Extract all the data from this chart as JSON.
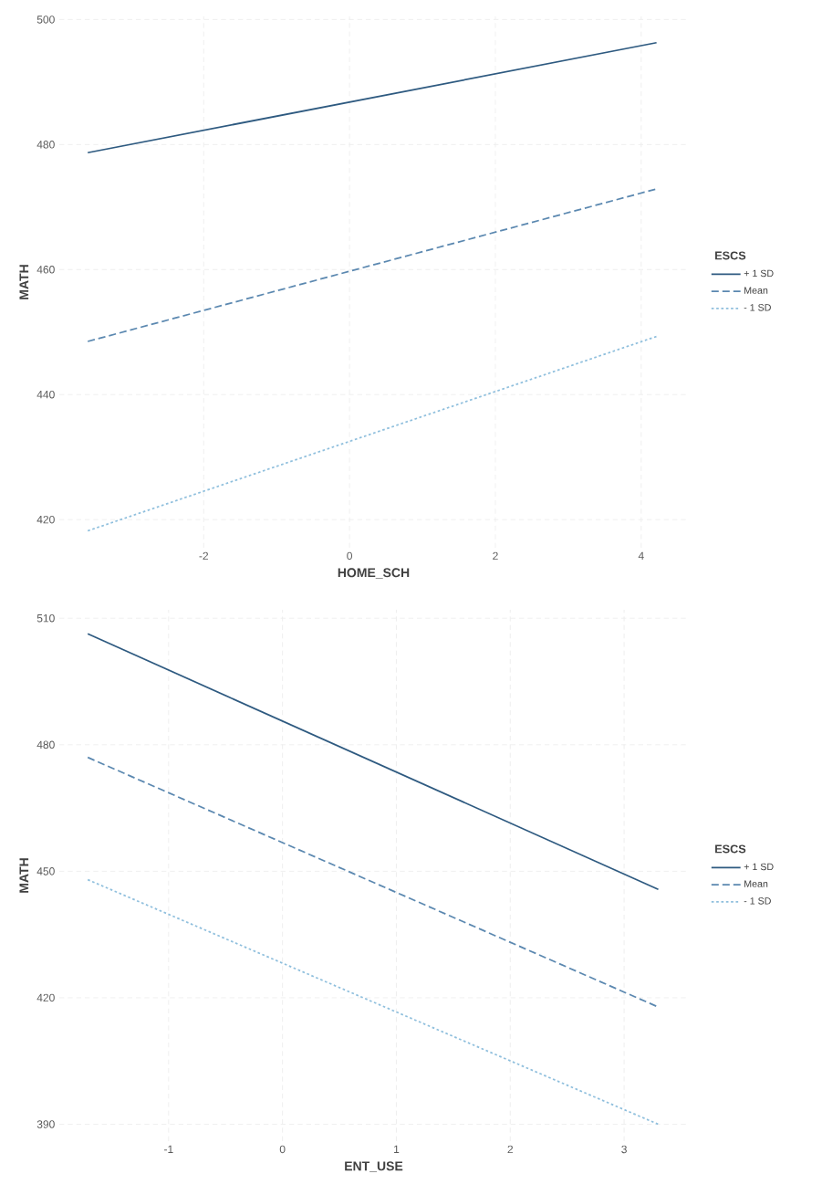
{
  "chart_data": [
    {
      "type": "line",
      "xlabel": "HOME_SCH",
      "ylabel": "MATH",
      "legend_title": "ESCS",
      "legend": "right",
      "grid": true,
      "xlim": [
        -3.98,
        4.64
      ],
      "ylim": [
        415.5,
        500.5
      ],
      "xticks": [
        -2,
        0,
        2,
        4
      ],
      "yticks": [
        420,
        440,
        460,
        480,
        500
      ],
      "series": [
        {
          "name": "+ 1 SD",
          "color": "#2e5a80",
          "line_style": "solid",
          "x": [
            -3.59,
            4.21
          ],
          "values": [
            478.7,
            496.3
          ]
        },
        {
          "name": "Mean",
          "color": "#5b88b0",
          "line_style": "dashed",
          "x": [
            -3.59,
            4.21
          ],
          "values": [
            448.5,
            472.9
          ]
        },
        {
          "name": "- 1 SD",
          "color": "#8fbfdd",
          "line_style": "dotted",
          "x": [
            -3.59,
            4.21
          ],
          "values": [
            418.2,
            449.3
          ]
        }
      ]
    },
    {
      "type": "line",
      "xlabel": "ENT_USE",
      "ylabel": "MATH",
      "legend_title": "ESCS",
      "legend": "right",
      "grid": true,
      "xlim": [
        -1.96,
        3.56
      ],
      "ylim": [
        386,
        512
      ],
      "xticks": [
        -1,
        0,
        1,
        2,
        3
      ],
      "yticks": [
        390,
        420,
        450,
        480,
        510
      ],
      "series": [
        {
          "name": "+ 1 SD",
          "color": "#2e5a80",
          "line_style": "solid",
          "x": [
            -1.71,
            3.3
          ],
          "values": [
            506.3,
            445.7
          ]
        },
        {
          "name": "Mean",
          "color": "#5b88b0",
          "line_style": "dashed",
          "x": [
            -1.71,
            3.3
          ],
          "values": [
            477.0,
            417.8
          ]
        },
        {
          "name": "- 1 SD",
          "color": "#8fbfdd",
          "line_style": "dotted",
          "x": [
            -1.71,
            3.3
          ],
          "values": [
            448.0,
            390.0
          ]
        }
      ]
    }
  ]
}
